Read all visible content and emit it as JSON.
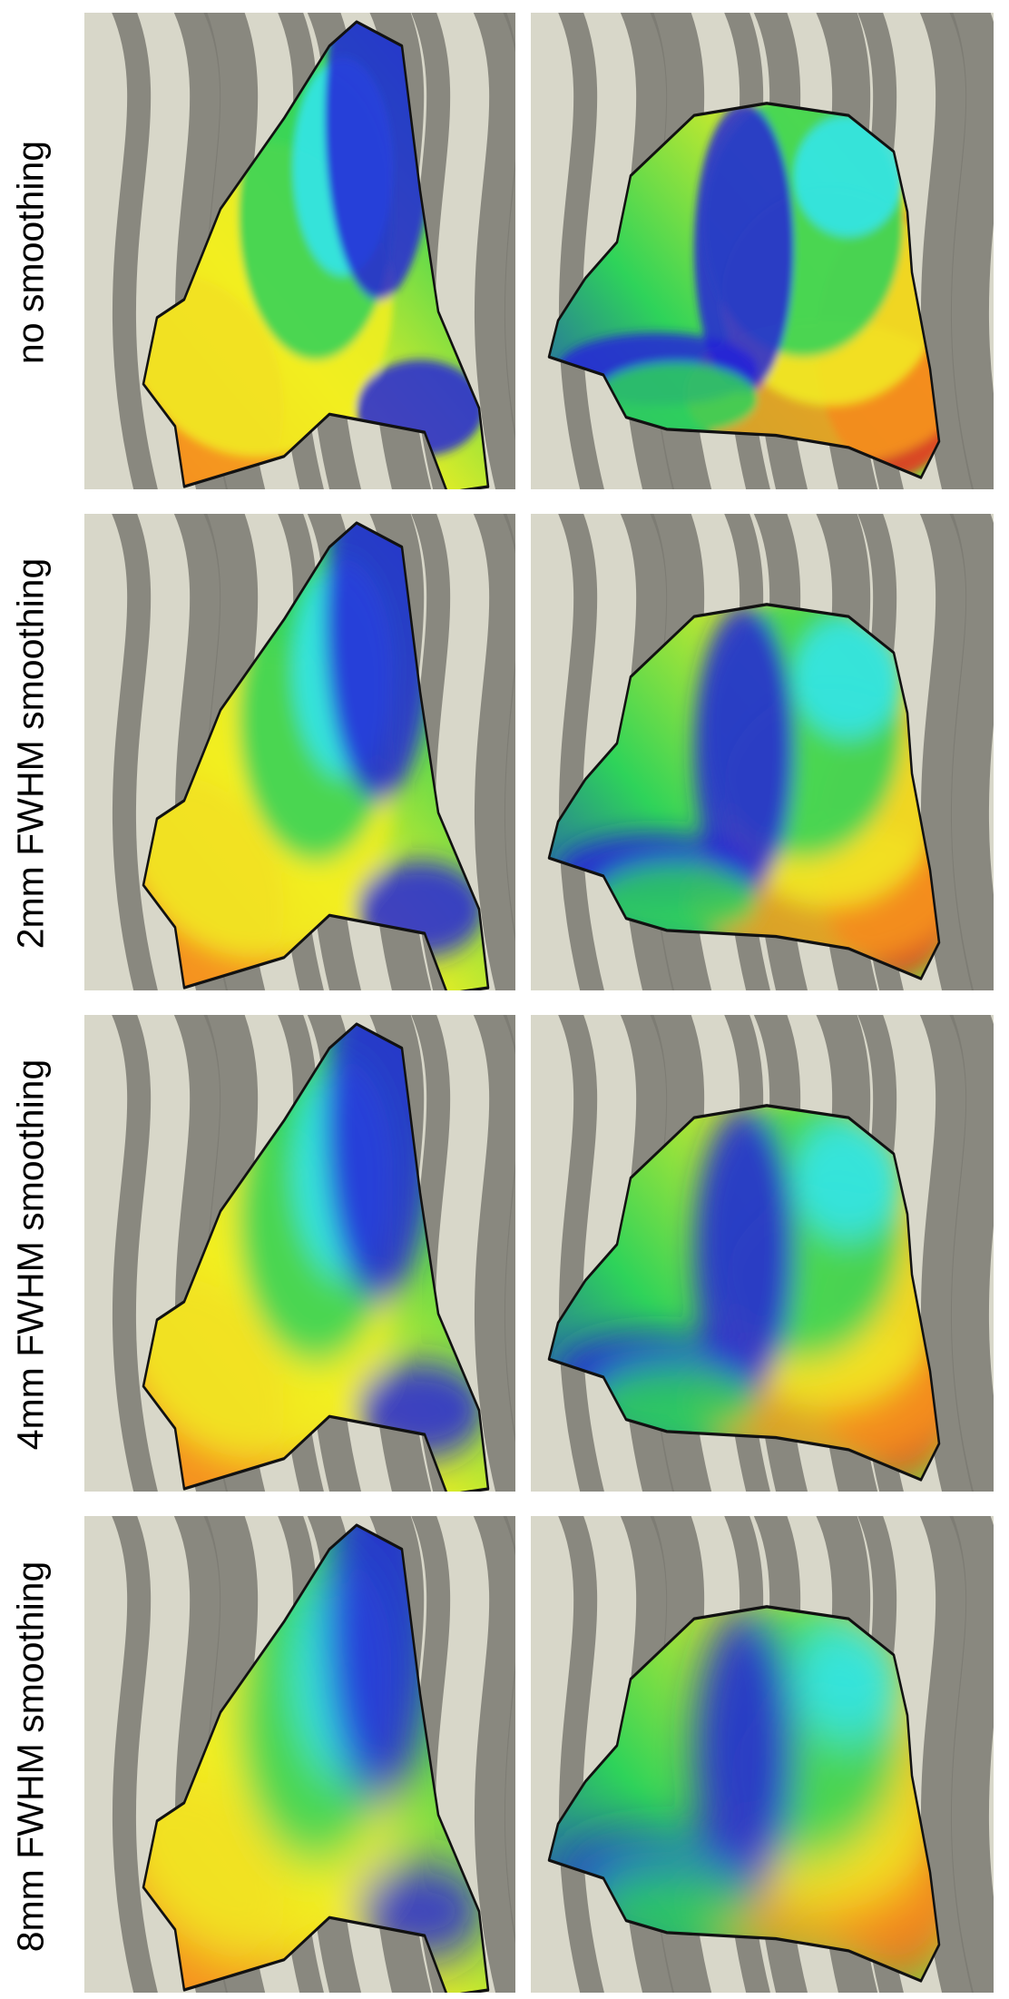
{
  "rows": [
    {
      "label": "no smoothing"
    },
    {
      "label": "2mm FWHM smoothing"
    },
    {
      "label": "4mm FWHM smoothing"
    },
    {
      "label": "8mm FWHM smoothing"
    }
  ],
  "colors": {
    "background": "#ffffff",
    "gyri": "#d8d7c9",
    "sulci": "#7b7a72",
    "outline": "#111111",
    "map_red": "#e8301c",
    "map_orange": "#f79a1e",
    "map_yellow": "#f2ef21",
    "map_green": "#2ed35a",
    "map_cyan": "#32e6f2",
    "map_blue": "#2424d8"
  }
}
